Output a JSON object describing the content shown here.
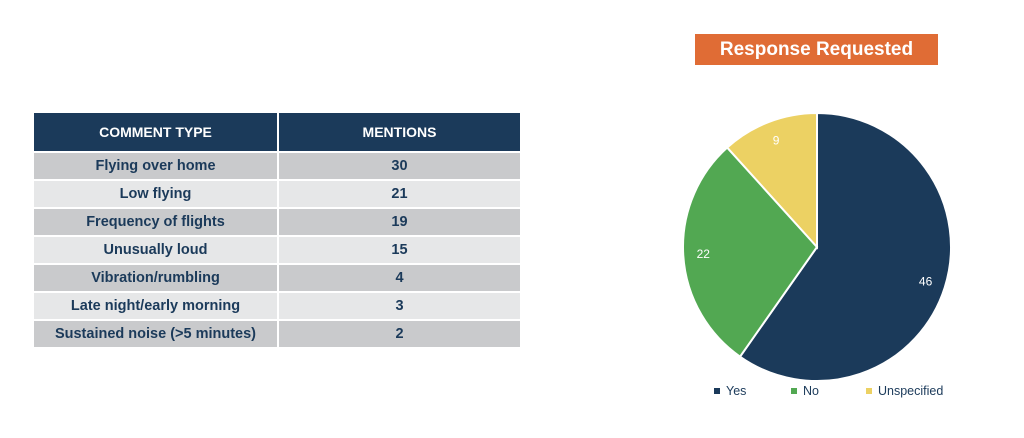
{
  "table": {
    "headers": [
      "COMMENT TYPE",
      "MENTIONS"
    ],
    "rows": [
      {
        "type": "Flying over home",
        "mentions": "30"
      },
      {
        "type": "Low flying",
        "mentions": "21"
      },
      {
        "type": "Frequency of flights",
        "mentions": "19"
      },
      {
        "type": "Unusually loud",
        "mentions": "15"
      },
      {
        "type": "Vibration/rumbling",
        "mentions": "4"
      },
      {
        "type": "Late night/early morning",
        "mentions": "3"
      },
      {
        "type": "Sustained noise (>5 minutes)",
        "mentions": "2"
      }
    ]
  },
  "chart_data": [
    {
      "type": "table",
      "columns": [
        "COMMENT TYPE",
        "MENTIONS"
      ],
      "categories": [
        "Flying over home",
        "Low flying",
        "Frequency of flights",
        "Unusually loud",
        "Vibration/rumbling",
        "Late night/early morning",
        "Sustained noise (>5 minutes)"
      ],
      "values": [
        30,
        21,
        19,
        15,
        4,
        3,
        2
      ]
    },
    {
      "type": "pie",
      "title": "Response Requested",
      "categories": [
        "Yes",
        "No",
        "Unspecified"
      ],
      "values": [
        46,
        22,
        9
      ],
      "colors": [
        "#1b3a5a",
        "#52a852",
        "#ecd163"
      ],
      "label_colors": [
        "#ffffff",
        "#ffffff",
        "#ffffff"
      ],
      "legend": "bottom",
      "start": "12 o'clock, clockwise"
    }
  ]
}
